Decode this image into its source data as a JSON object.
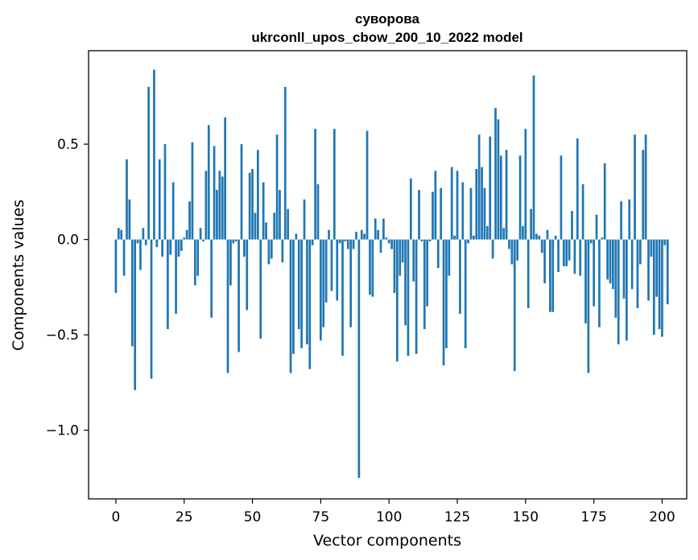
{
  "chart_data": {
    "type": "bar",
    "title": "суворова",
    "subtitle": "ukrconll_upos_cbow_200_10_2022 model",
    "xlabel": "Vector components",
    "ylabel": "Components values",
    "xlim": [
      -10,
      209
    ],
    "ylim": [
      -1.36,
      0.99
    ],
    "xticks": [
      0,
      25,
      50,
      75,
      100,
      125,
      150,
      175,
      200
    ],
    "yticks": [
      -1.0,
      -0.5,
      0.0,
      0.5
    ],
    "ytick_labels": [
      "−1.0",
      "−0.5",
      "0.0",
      "0.5"
    ],
    "grid": false,
    "bar_color": "#1f77b4",
    "values": [
      -0.28,
      0.06,
      0.05,
      -0.19,
      0.42,
      0.21,
      -0.56,
      -0.79,
      -0.02,
      -0.16,
      0.06,
      -0.03,
      0.8,
      -0.73,
      0.89,
      -0.04,
      0.42,
      -0.09,
      0.5,
      -0.47,
      -0.08,
      0.3,
      -0.39,
      -0.09,
      -0.06,
      0.01,
      0.05,
      0.2,
      0.51,
      -0.24,
      -0.19,
      0.06,
      -0.01,
      0.36,
      0.6,
      -0.41,
      0.49,
      0.26,
      0.36,
      0.33,
      0.64,
      -0.7,
      -0.24,
      -0.02,
      -0.01,
      -0.59,
      0.5,
      -0.09,
      -0.37,
      0.35,
      0.37,
      0.14,
      0.47,
      -0.52,
      0.3,
      0.09,
      -0.13,
      -0.1,
      0.14,
      0.55,
      0.26,
      -0.12,
      0.8,
      0.16,
      -0.7,
      -0.6,
      0.03,
      -0.47,
      -0.57,
      0.21,
      -0.55,
      -0.68,
      -0.03,
      0.58,
      0.29,
      -0.53,
      -0.46,
      -0.33,
      0.05,
      -0.27,
      0.58,
      -0.32,
      -0.02,
      -0.61,
      -0.01,
      -0.05,
      -0.46,
      -0.05,
      0.04,
      -1.25,
      0.05,
      0.03,
      0.57,
      -0.29,
      -0.3,
      0.11,
      0.05,
      -0.07,
      0.11,
      0.01,
      -0.02,
      -0.05,
      -0.28,
      -0.64,
      -0.19,
      -0.12,
      -0.45,
      -0.61,
      0.32,
      -0.22,
      -0.6,
      0.26,
      -0.01,
      -0.47,
      -0.35,
      -0.01,
      0.25,
      0.36,
      -0.15,
      0.27,
      -0.66,
      -0.57,
      -0.19,
      0.38,
      0.02,
      0.36,
      -0.39,
      0.3,
      -0.57,
      -0.02,
      0.27,
      0.02,
      0.37,
      0.55,
      0.38,
      0.27,
      0.07,
      0.54,
      -0.1,
      0.69,
      0.63,
      0.44,
      0.06,
      0.47,
      -0.05,
      -0.13,
      -0.69,
      -0.11,
      0.44,
      0.07,
      0.58,
      -0.36,
      0.16,
      0.86,
      0.03,
      0.02,
      -0.07,
      -0.23,
      0.05,
      -0.38,
      -0.38,
      0.02,
      -0.17,
      0.44,
      -0.14,
      -0.14,
      -0.11,
      0.15,
      -0.18,
      0.53,
      -0.19,
      0.29,
      -0.44,
      -0.7,
      -0.02,
      -0.35,
      0.13,
      -0.46,
      0.01,
      0.4,
      -0.21,
      -0.23,
      -0.26,
      -0.41,
      -0.55,
      0.2,
      -0.31,
      -0.53,
      0.21,
      -0.26,
      0.55,
      -0.36,
      -0.13,
      0.47,
      0.55,
      -0.32,
      -0.09,
      -0.5,
      -0.3,
      -0.47,
      -0.51,
      -0.03,
      -0.34
    ]
  }
}
